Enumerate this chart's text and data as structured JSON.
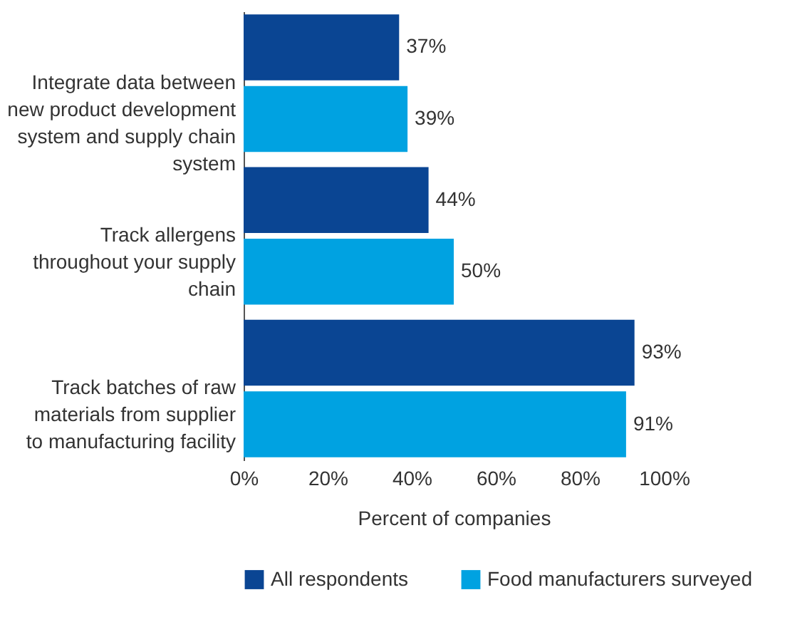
{
  "chart_data": {
    "type": "bar",
    "orientation": "horizontal",
    "xlabel": "Percent of companies",
    "categories": [
      "Integrate data between new product development system and supply chain system",
      "Track allergens throughout your supply chain",
      "Track batches of raw materials from supplier to manufacturing facility"
    ],
    "series": [
      {
        "name": "All respondents",
        "color": "#0a4593",
        "values": [
          37,
          44,
          93
        ],
        "value_labels": [
          "37%",
          "44%",
          "93%"
        ]
      },
      {
        "name": "Food manufacturers surveyed",
        "color": "#00a2e1",
        "values": [
          39,
          50,
          91
        ],
        "value_labels": [
          "39%",
          "50%",
          "91%"
        ]
      }
    ],
    "xlim": [
      0,
      100
    ],
    "xticks": [
      {
        "value": 0,
        "label": "0%"
      },
      {
        "value": 20,
        "label": "20%"
      },
      {
        "value": 40,
        "label": "40%"
      },
      {
        "value": 60,
        "label": "60%"
      },
      {
        "value": 80,
        "label": "80%"
      },
      {
        "value": 100,
        "label": "100%"
      }
    ],
    "grid": false,
    "legend": "bottom"
  }
}
